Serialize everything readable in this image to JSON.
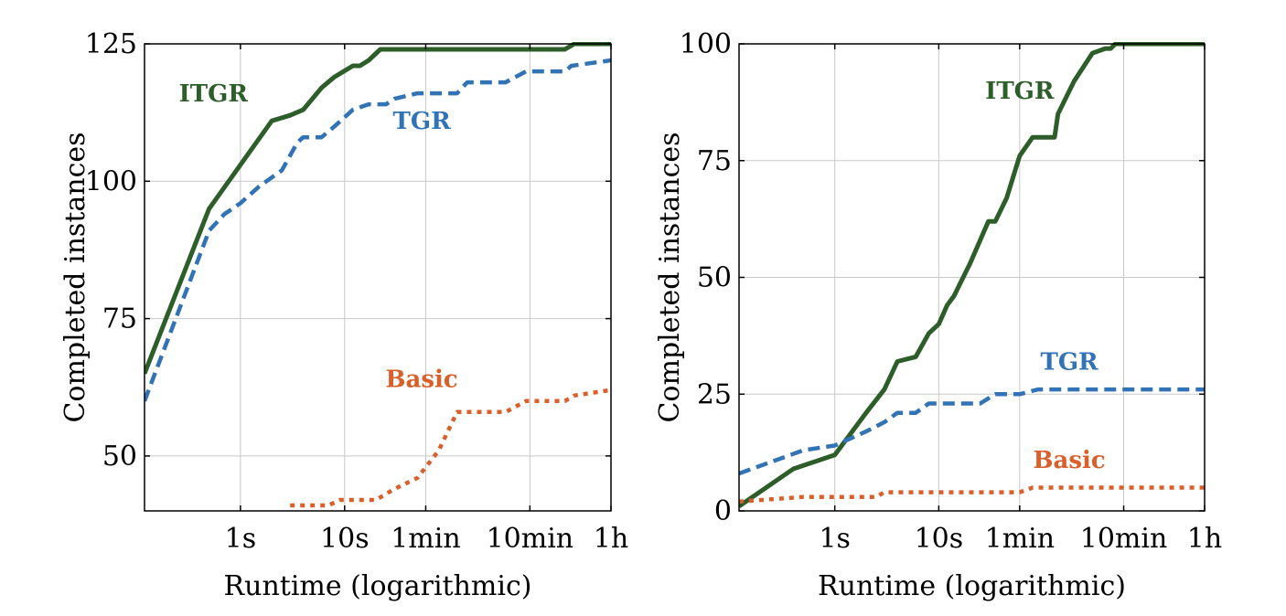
{
  "chart_data": [
    {
      "type": "line",
      "xlabel": "Runtime (logarithmic)",
      "ylabel": "Completed instances",
      "xscale": "log",
      "xlim": [
        0.12,
        3600
      ],
      "ylim": [
        40,
        125
      ],
      "xticks": [
        {
          "value": 1,
          "label": "1s"
        },
        {
          "value": 10,
          "label": "10s"
        },
        {
          "value": 60,
          "label": "1min"
        },
        {
          "value": 600,
          "label": "10min"
        },
        {
          "value": 3600,
          "label": "1h"
        }
      ],
      "yticks": [
        {
          "value": 50,
          "label": "50"
        },
        {
          "value": 75,
          "label": "75"
        },
        {
          "value": 100,
          "label": "100"
        },
        {
          "value": 125,
          "label": "125"
        }
      ],
      "grid": true,
      "series": [
        {
          "name": "ITGR",
          "color": "#2d5e2a",
          "dash": "solid",
          "label_at": [
            0.55,
            116
          ],
          "x": [
            0.12,
            0.5,
            1.0,
            2.0,
            3.0,
            4.0,
            6.0,
            8.0,
            12.0,
            14.0,
            17.0,
            22.0,
            100,
            300,
            1300,
            1600,
            3600
          ],
          "y": [
            65,
            95,
            103,
            111,
            112,
            113,
            117,
            119,
            121,
            121,
            122,
            124,
            124,
            124,
            124,
            125,
            125
          ]
        },
        {
          "name": "TGR",
          "color": "#3273b6",
          "dash": "dashed",
          "label_at": [
            55,
            111
          ],
          "x": [
            0.12,
            0.5,
            0.7,
            1.0,
            1.5,
            2.5,
            3.5,
            4.0,
            6.0,
            8.0,
            12.0,
            17.0,
            25.0,
            30.0,
            50.0,
            120,
            150,
            350,
            550,
            1300,
            1500,
            3600
          ],
          "y": [
            60,
            91,
            94,
            96,
            99,
            102,
            107,
            108,
            108,
            110,
            113,
            114,
            114,
            115,
            116,
            116,
            118,
            118,
            120,
            120,
            121,
            122
          ]
        },
        {
          "name": "Basic",
          "color": "#d95f2b",
          "dash": "dotted",
          "label_at": [
            55,
            64
          ],
          "x": [
            3.0,
            7.0,
            9.0,
            20.0,
            30.0,
            50.0,
            80.0,
            120,
            350,
            550,
            1300,
            1600,
            3600
          ],
          "y": [
            41,
            41,
            42,
            42,
            44,
            46,
            51,
            58,
            58,
            60,
            60,
            61,
            62
          ]
        }
      ]
    },
    {
      "type": "line",
      "xlabel": "Runtime (logarithmic)",
      "ylabel": "Completed instances",
      "xscale": "log",
      "xlim": [
        0.12,
        3600
      ],
      "ylim": [
        0,
        100
      ],
      "xticks": [
        {
          "value": 1,
          "label": "1s"
        },
        {
          "value": 10,
          "label": "10s"
        },
        {
          "value": 60,
          "label": "1min"
        },
        {
          "value": 600,
          "label": "10min"
        },
        {
          "value": 3600,
          "label": "1h"
        }
      ],
      "yticks": [
        {
          "value": 0,
          "label": "0"
        },
        {
          "value": 25,
          "label": "25"
        },
        {
          "value": 50,
          "label": "50"
        },
        {
          "value": 75,
          "label": "75"
        },
        {
          "value": 100,
          "label": "100"
        }
      ],
      "grid": true,
      "series": [
        {
          "name": "ITGR",
          "color": "#2d5e2a",
          "dash": "solid",
          "label_at": [
            60,
            90
          ],
          "x": [
            0.12,
            0.4,
            1.0,
            2.0,
            3.0,
            4.0,
            6.0,
            8.0,
            10.0,
            12.0,
            14.0,
            20.0,
            30.0,
            35.0,
            45.0,
            60.0,
            80.0,
            90.0,
            130,
            140,
            200,
            300,
            400,
            450,
            500,
            600,
            3600
          ],
          "y": [
            1,
            9,
            12,
            21,
            26,
            32,
            33,
            38,
            40,
            44,
            46,
            53,
            62,
            62,
            67,
            76,
            80,
            80,
            80,
            85,
            92,
            98,
            99,
            99,
            100,
            100,
            100
          ]
        },
        {
          "name": "TGR",
          "color": "#3273b6",
          "dash": "dashed",
          "label_at": [
            180,
            32
          ],
          "x": [
            0.12,
            0.5,
            1.0,
            2.0,
            3.0,
            4.0,
            6.0,
            8.0,
            10.0,
            25.0,
            35.0,
            60.0,
            90.0,
            3600
          ],
          "y": [
            8,
            13,
            14,
            17,
            19,
            21,
            21,
            23,
            23,
            23,
            25,
            25,
            26,
            26
          ]
        },
        {
          "name": "Basic",
          "color": "#d95f2b",
          "dash": "dotted",
          "label_at": [
            180,
            11
          ],
          "x": [
            0.12,
            0.5,
            2.5,
            3.0,
            10.0,
            60.0,
            80.0,
            3600
          ],
          "y": [
            2,
            3,
            3,
            4,
            4,
            4,
            5,
            5
          ]
        }
      ]
    }
  ]
}
